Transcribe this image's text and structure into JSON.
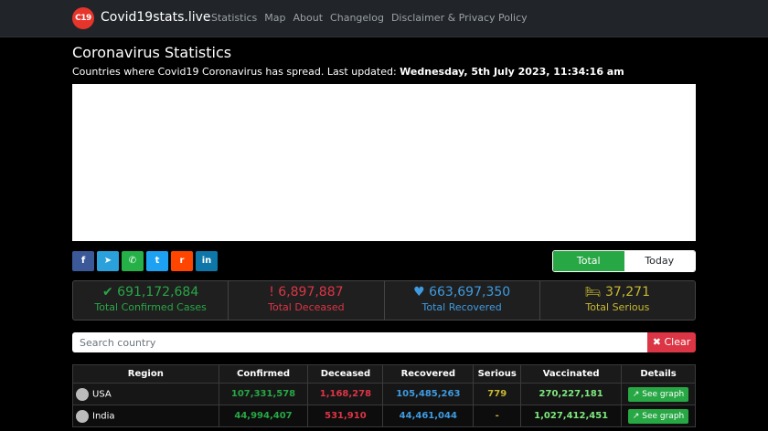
{
  "header": {
    "logo_text": "C19",
    "brand": "Covid19stats.live",
    "nav": [
      "Statistics",
      "Map",
      "About",
      "Changelog",
      "Disclaimer & Privacy Policy"
    ]
  },
  "page": {
    "title": "Coronavirus Statistics",
    "subtitle_prefix": "Countries where Covid19 Coronavirus has spread. Last updated: ",
    "updated": "Wednesday, 5th July 2023, 11:34:16 am"
  },
  "share": {
    "facebook": "f",
    "telegram": "➤",
    "whatsapp": "✆",
    "twitter": "t",
    "reddit": "r",
    "linkedin": "in"
  },
  "toggle": {
    "total": "Total",
    "today": "Today",
    "active": "Total"
  },
  "stats": {
    "confirmed": {
      "icon": "✔",
      "value": "691,172,684",
      "label": "Total Confirmed Cases"
    },
    "deceased": {
      "icon": "!",
      "value": "6,897,887",
      "label": "Total Deceased"
    },
    "recovered": {
      "icon": "♥",
      "value": "663,697,350",
      "label": "Total Recovered"
    },
    "serious": {
      "icon": "🛏",
      "value": "37,271",
      "label": "Total Serious"
    }
  },
  "search": {
    "placeholder": "Search country",
    "clear_label": "Clear",
    "clear_icon": "✖"
  },
  "table": {
    "headers": [
      "Region",
      "Confirmed",
      "Deceased",
      "Recovered",
      "Serious",
      "Vaccinated",
      "Details"
    ],
    "rows": [
      {
        "region": "USA",
        "confirmed": "107,331,578",
        "deceased": "1,168,278",
        "recovered": "105,485,263",
        "serious": "779",
        "vaccinated": "270,227,181",
        "details": "See graph"
      },
      {
        "region": "India",
        "confirmed": "44,994,407",
        "deceased": "531,910",
        "recovered": "44,461,044",
        "serious": "-",
        "vaccinated": "1,027,412,451",
        "details": "See graph"
      }
    ]
  },
  "colors": {
    "confirmed": "#28a745",
    "deceased": "#dc3545",
    "recovered": "#3f9be0",
    "serious": "#c8b832",
    "navbar": "#212529"
  }
}
